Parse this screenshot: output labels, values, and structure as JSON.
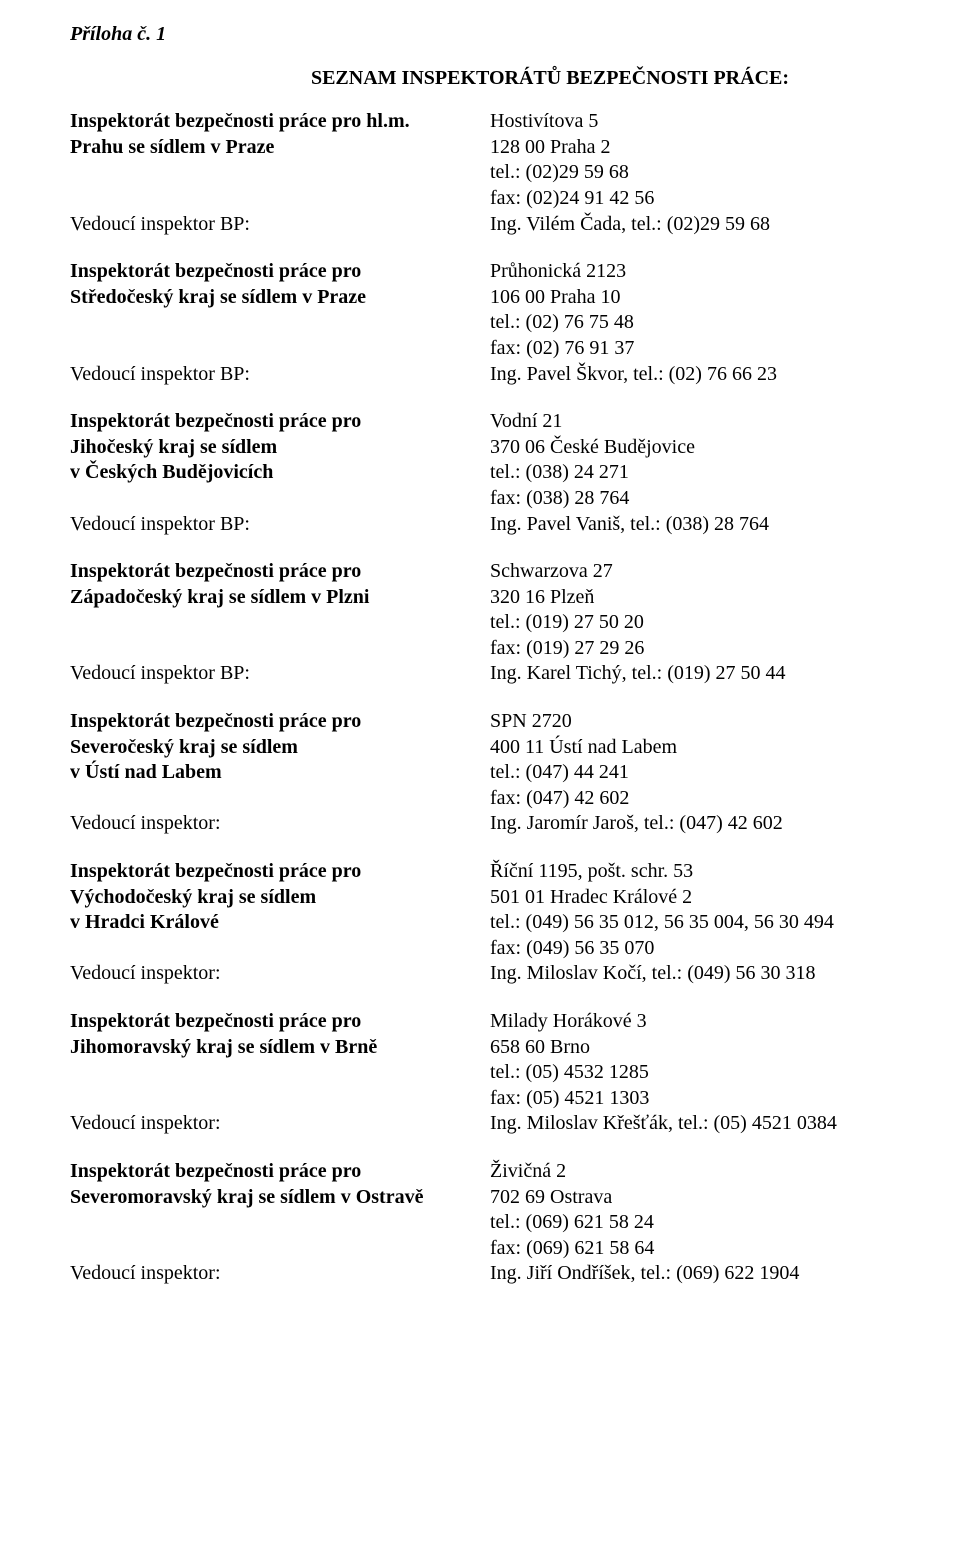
{
  "appendix": "Příloha č. 1",
  "title": "SEZNAM INSPEKTORÁTŮ BEZPEČNOSTI PRÁCE:",
  "labels": {
    "vedouci_bp": "Vedoucí inspektor BP:",
    "vedouci": "Vedoucí inspektor:"
  },
  "offices": [
    {
      "name_lines": [
        "Inspektorát bezpečnosti práce pro hl.m.",
        "Prahu se sídlem v Praze"
      ],
      "addr": [
        "Hostivítova 5",
        "128 00  Praha 2",
        "tel.: (02)29 59 68",
        "fax:  (02)24 91 42 56"
      ],
      "lead_label": "vedouci_bp",
      "lead": "Ing. Vilém Čada, tel.: (02)29 59 68"
    },
    {
      "name_lines": [
        "Inspektorát bezpečnosti práce pro",
        "Středočeský kraj se sídlem v Praze"
      ],
      "addr": [
        "Průhonická 2123",
        "106 00  Praha 10",
        "tel.: (02) 76 75 48",
        "fax: (02) 76 91 37"
      ],
      "lead_label": "vedouci_bp",
      "lead": "Ing. Pavel Škvor, tel.: (02) 76 66 23"
    },
    {
      "name_lines": [
        "Inspektorát bezpečnosti práce pro",
        "Jihočeský kraj se sídlem",
        "v Českých Budějovicích"
      ],
      "addr": [
        "Vodní 21",
        "370 06  České Budějovice",
        "tel.: (038) 24 271",
        "fax: (038) 28 764"
      ],
      "lead_label": "vedouci_bp",
      "lead": "Ing. Pavel Vaniš, tel.: (038) 28 764"
    },
    {
      "name_lines": [
        "Inspektorát bezpečnosti práce pro",
        "Západočeský kraj se sídlem v Plzni"
      ],
      "addr": [
        "Schwarzova 27",
        "320 16  Plzeň",
        "tel.: (019) 27 50 20",
        "fax: (019) 27 29 26"
      ],
      "lead_label": "vedouci_bp",
      "lead": "Ing. Karel Tichý, tel.: (019) 27 50 44"
    },
    {
      "name_lines": [
        "Inspektorát bezpečnosti práce pro",
        "Severočeský kraj se sídlem",
        "v Ústí nad Labem"
      ],
      "addr": [
        "SPN 2720",
        "400 11  Ústí nad Labem",
        "tel.: (047) 44 241",
        "fax: (047) 42 602"
      ],
      "lead_label": "vedouci",
      "lead": "Ing. Jaromír Jaroš, tel.: (047) 42 602"
    },
    {
      "name_lines": [
        "Inspektorát bezpečnosti práce pro",
        "Východočeský kraj se sídlem",
        "v Hradci Králové"
      ],
      "addr": [
        "Říční 1195, pošt. schr. 53",
        "501 01 Hradec Králové 2",
        "tel.: (049) 56 35 012,  56 35 004, 56 30 494",
        "fax: (049) 56 35 070"
      ],
      "lead_label": "vedouci",
      "lead": "Ing. Miloslav Kočí, tel.: (049) 56 30 318"
    },
    {
      "name_lines": [
        "Inspektorát bezpečnosti práce pro",
        "Jihomoravský kraj se sídlem v Brně"
      ],
      "addr": [
        "Milady Horákové 3",
        "658 60  Brno",
        "tel.: (05) 4532 1285",
        "fax: (05) 4521 1303"
      ],
      "lead_label": "vedouci",
      "lead": "Ing. Miloslav Křešťák, tel.: (05) 4521 0384"
    },
    {
      "name_lines": [
        "Inspektorát bezpečnosti práce pro",
        "Severomoravský kraj se sídlem v Ostravě"
      ],
      "addr": [
        "Živičná 2",
        "702 69 Ostrava",
        "tel.: (069) 621 58 24",
        "fax: (069) 621 58 64"
      ],
      "lead_label": "vedouci",
      "lead": "Ing. Jiří Ondříšek, tel.: (069) 622 1904"
    }
  ]
}
